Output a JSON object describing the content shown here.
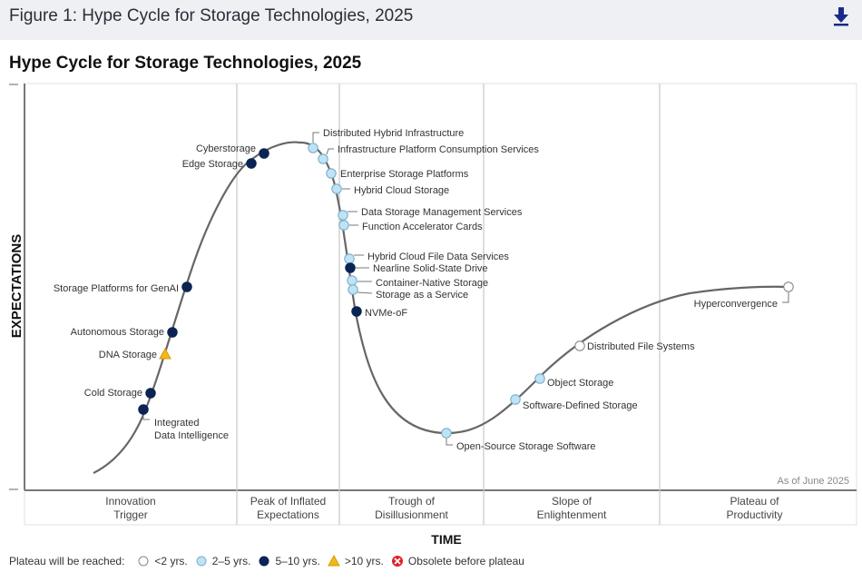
{
  "header": {
    "figure_title": "Figure 1: Hype Cycle for Storage Technologies, 2025",
    "download_icon": "download-icon"
  },
  "chart_data": {
    "type": "scatter",
    "title": "Hype Cycle for Storage Technologies, 2025",
    "xlabel": "TIME",
    "ylabel": "EXPECTATIONS",
    "annotation": "As of June 2025",
    "phases": [
      "Innovation Trigger",
      "Peak of Inflated Expectations",
      "Trough of Disillusionment",
      "Slope of Enlightenment",
      "Plateau of Productivity"
    ],
    "phase_lines": [
      "Innovation\nTrigger",
      "Peak of Inflated\nExpectations",
      "Trough of\nDisillusionment",
      "Slope of\nEnlightenment",
      "Plateau of\nProductivity"
    ],
    "legend_title": "Plateau will be reached:",
    "legend": [
      {
        "key": "lt2",
        "label": "<2 yrs.",
        "color": "#ffffff"
      },
      {
        "key": "2to5",
        "label": "2–5 yrs.",
        "color": "#bfe3f5"
      },
      {
        "key": "5to10",
        "label": "5–10 yrs.",
        "color": "#0b2454"
      },
      {
        "key": "gt10",
        "label": ">10 yrs.",
        "color": "#f2b81c"
      },
      {
        "key": "obsolete",
        "label": "Obsolete before plateau",
        "color": "#e0202a"
      }
    ],
    "points": [
      {
        "name": "Integrated Data Intelligence",
        "phase": "Innovation Trigger",
        "position": 0.135,
        "plateau": "5to10"
      },
      {
        "name": "Cold Storage",
        "phase": "Innovation Trigger",
        "position": 0.145,
        "plateau": "5to10"
      },
      {
        "name": "DNA Storage",
        "phase": "Innovation Trigger",
        "position": 0.16,
        "plateau": "gt10"
      },
      {
        "name": "Autonomous Storage",
        "phase": "Innovation Trigger",
        "position": 0.17,
        "plateau": "5to10"
      },
      {
        "name": "Storage Platforms for GenAI",
        "phase": "Innovation Trigger",
        "position": 0.19,
        "plateau": "5to10"
      },
      {
        "name": "Edge Storage",
        "phase": "Innovation Trigger",
        "position": 0.27,
        "plateau": "5to10"
      },
      {
        "name": "Cyberstorage",
        "phase": "Peak of Inflated Expectations",
        "position": 0.285,
        "plateau": "5to10"
      },
      {
        "name": "Distributed Hybrid Infrastructure",
        "phase": "Peak of Inflated Expectations",
        "position": 0.345,
        "plateau": "2to5"
      },
      {
        "name": "Infrastructure Platform Consumption Services",
        "phase": "Peak of Inflated Expectations",
        "position": 0.355,
        "plateau": "2to5"
      },
      {
        "name": "Enterprise Storage Platforms",
        "phase": "Peak of Inflated Expectations",
        "position": 0.365,
        "plateau": "2to5"
      },
      {
        "name": "Hybrid Cloud Storage",
        "phase": "Trough of Disillusionment",
        "position": 0.37,
        "plateau": "2to5"
      },
      {
        "name": "Data Storage Management Services",
        "phase": "Trough of Disillusionment",
        "position": 0.377,
        "plateau": "2to5"
      },
      {
        "name": "Function Accelerator Cards",
        "phase": "Trough of Disillusionment",
        "position": 0.379,
        "plateau": "2to5"
      },
      {
        "name": "Hybrid Cloud File Data Services",
        "phase": "Trough of Disillusionment",
        "position": 0.385,
        "plateau": "2to5"
      },
      {
        "name": "Nearline Solid-State Drive",
        "phase": "Trough of Disillusionment",
        "position": 0.387,
        "plateau": "5to10"
      },
      {
        "name": "Container-Native Storage",
        "phase": "Trough of Disillusionment",
        "position": 0.389,
        "plateau": "2to5"
      },
      {
        "name": "Storage as a Service",
        "phase": "Trough of Disillusionment",
        "position": 0.39,
        "plateau": "2to5"
      },
      {
        "name": "NVMe-oF",
        "phase": "Trough of Disillusionment",
        "position": 0.395,
        "plateau": "5to10"
      },
      {
        "name": "Open-Source Storage Software",
        "phase": "Trough of Disillusionment",
        "position": 0.49,
        "plateau": "2to5"
      },
      {
        "name": "Software-Defined Storage",
        "phase": "Slope of Enlightenment",
        "position": 0.57,
        "plateau": "2to5"
      },
      {
        "name": "Object Storage",
        "phase": "Slope of Enlightenment",
        "position": 0.595,
        "plateau": "2to5"
      },
      {
        "name": "Distributed File Systems",
        "phase": "Slope of Enlightenment",
        "position": 0.64,
        "plateau": "lt2"
      },
      {
        "name": "Hyperconvergence",
        "phase": "Plateau of Productivity",
        "position": 0.87,
        "plateau": "lt2"
      }
    ]
  }
}
